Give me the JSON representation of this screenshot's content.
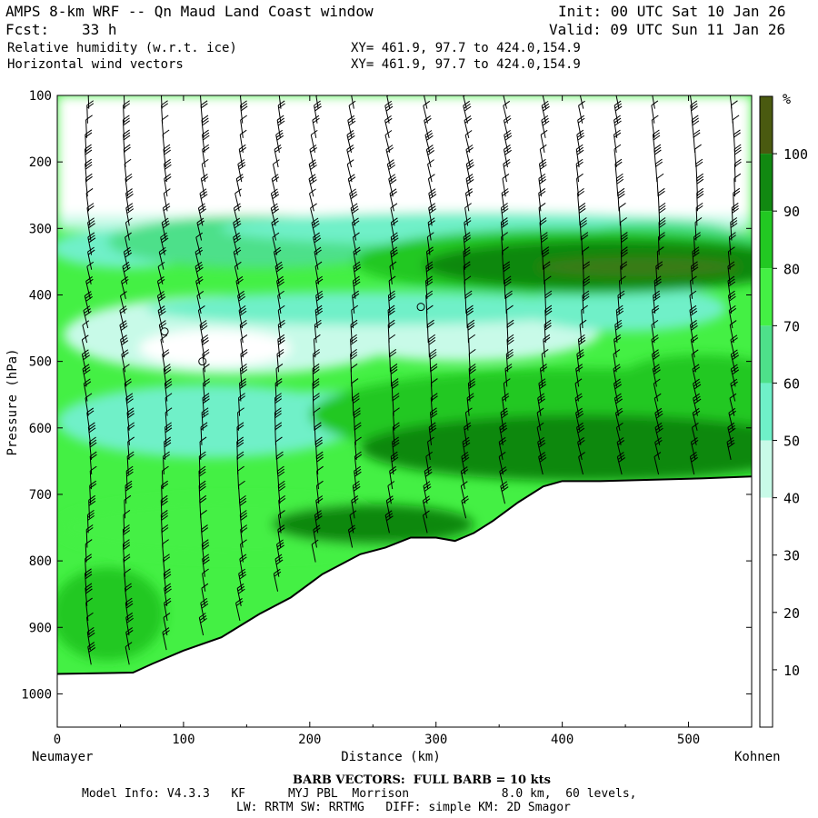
{
  "header": {
    "title": "AMPS 8-km WRF -- Qn Maud Land Coast window",
    "fcst_label": "Fcst:",
    "fcst_value": "33 h",
    "init": "Init: 00 UTC Sat 10 Jan 26",
    "valid": "Valid: 09 UTC Sun 11 Jan 26",
    "field1": "Relative humidity (w.r.t. ice)",
    "field2": "Horizontal wind vectors",
    "xy1": "XY= 461.9, 97.7 to 424.0,154.9",
    "xy2": "XY= 461.9, 97.7 to 424.0,154.9"
  },
  "footer": {
    "barb": "BARB VECTORS:  FULL BARB = 10 kts",
    "model_info": "Model Info: V4.3.3   KF      MYJ PBL  Morrison             8.0 km,  60 levels,",
    "model_info2": "LW: RRTM SW: RRTMG   DIFF: simple KM: 2D Smagor"
  },
  "chart_data": {
    "type": "heatmap",
    "title": "Relative humidity (w.r.t. ice) cross-section with horizontal wind barbs",
    "xlabel": "Distance (km)",
    "ylabel": "Pressure (hPa)",
    "xlim": [
      0,
      550
    ],
    "ylim": [
      1050,
      100
    ],
    "x_ticks": [
      0,
      100,
      200,
      300,
      400,
      500
    ],
    "y_ticks": [
      100,
      200,
      300,
      400,
      500,
      600,
      700,
      800,
      900,
      1000
    ],
    "left_endpoint": "Neumayer",
    "right_endpoint": "Kohnen",
    "colorbar": {
      "unit": "%",
      "levels": [
        10,
        20,
        30,
        40,
        50,
        60,
        70,
        80,
        90,
        100
      ],
      "colors": [
        "#ffffff",
        "#ffffff",
        "#ffffff",
        "#c8fae8",
        "#6ff0c8",
        "#4ee08a",
        "#44f044",
        "#22c822",
        "#118811",
        "#5a4a10"
      ]
    },
    "terrain_surface": [
      [
        0,
        970
      ],
      [
        60,
        968
      ],
      [
        75,
        955
      ],
      [
        100,
        935
      ],
      [
        130,
        915
      ],
      [
        160,
        880
      ],
      [
        185,
        855
      ],
      [
        210,
        820
      ],
      [
        240,
        790
      ],
      [
        260,
        780
      ],
      [
        280,
        765
      ],
      [
        300,
        765
      ],
      [
        315,
        770
      ],
      [
        330,
        758
      ],
      [
        345,
        740
      ],
      [
        365,
        712
      ],
      [
        385,
        688
      ],
      [
        400,
        680
      ],
      [
        430,
        680
      ],
      [
        470,
        678
      ],
      [
        510,
        676
      ],
      [
        550,
        673
      ]
    ],
    "rh_regions": [
      {
        "rh": 40,
        "desc": "moist band",
        "p_top": 290,
        "p_bottom": 330
      },
      {
        "rh": 90,
        "desc": "moist core",
        "center_x": 420,
        "center_p": 360
      },
      {
        "rh": 95,
        "desc": "low-level moist layer",
        "center_x": 380,
        "center_p": 620
      }
    ]
  }
}
